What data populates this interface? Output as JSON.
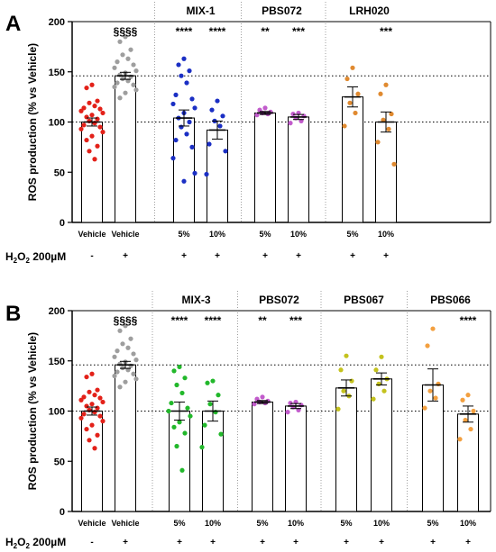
{
  "treatment_label": "H2O2 200µM",
  "treatment_label_parts": {
    "h": "H",
    "sub": "2",
    "o": "O",
    "sub2": "2",
    "rest": " 200µM"
  },
  "chart_data": [
    {
      "type": "bar",
      "panel": "A",
      "ylabel": "ROS production (% vs Vehicle)",
      "ylim": [
        0,
        200
      ],
      "yticks": [
        0,
        50,
        100,
        150,
        200
      ],
      "reference_lines": [
        100,
        146
      ],
      "categories": [
        "Vehicle",
        "Vehicle",
        "5%",
        "10%",
        "5%",
        "10%",
        "5%",
        "10%"
      ],
      "treatment": [
        "-",
        "+",
        "+",
        "+",
        "+",
        "+",
        "+",
        "+"
      ],
      "groups": [
        {
          "label": "",
          "from": 0,
          "to": 1
        },
        {
          "label": "MIX-1",
          "from": 2,
          "to": 3
        },
        {
          "label": "PBS072",
          "from": 4,
          "to": 5
        },
        {
          "label": "LRH020",
          "from": 6,
          "to": 7
        }
      ],
      "significance": [
        "",
        "§§§§",
        "****",
        "****",
        "**",
        "***",
        "",
        "***"
      ],
      "colors": [
        "#e32119",
        "#9e9e9e",
        "#1b2fc4",
        "#1b2fc4",
        "#c25ccc",
        "#c25ccc",
        "#e08a30",
        "#e08a30"
      ],
      "values": [
        100,
        146,
        104,
        92,
        109,
        105,
        125,
        100
      ],
      "errors": [
        4,
        3.5,
        8,
        9,
        1.5,
        2.5,
        10,
        10
      ],
      "points": [
        [
          137,
          134,
          121,
          119,
          116,
          114,
          113,
          111,
          109,
          107,
          105,
          103,
          101,
          99,
          97,
          95,
          93,
          90,
          86,
          82,
          76,
          71,
          63
        ],
        [
          185,
          180,
          172,
          167,
          163,
          160,
          157,
          154,
          151,
          149,
          147,
          145,
          143,
          141,
          139,
          137,
          135,
          132,
          129,
          124
        ],
        [
          163,
          157,
          151,
          146,
          139,
          127,
          123,
          118,
          114,
          109,
          104,
          100,
          95,
          88,
          82,
          75,
          64,
          49,
          41
        ],
        [
          121,
          112,
          106,
          101,
          96,
          78,
          71,
          48
        ],
        [
          114,
          112,
          110,
          109,
          108,
          107
        ],
        [
          109,
          108,
          106,
          104,
          101,
          99
        ],
        [
          154,
          143,
          128,
          119,
          109,
          96
        ],
        [
          137,
          128,
          108,
          102,
          93,
          80,
          58
        ]
      ]
    },
    {
      "type": "bar",
      "panel": "B",
      "ylabel": "ROS production (% vs Vehicle)",
      "ylim": [
        0,
        200
      ],
      "yticks": [
        0,
        50,
        100,
        150,
        200
      ],
      "reference_lines": [
        100,
        146
      ],
      "categories": [
        "Vehicle",
        "Vehicle",
        "5%",
        "10%",
        "5%",
        "10%",
        "5%",
        "10%",
        "5%",
        "10%"
      ],
      "treatment": [
        "-",
        "+",
        "+",
        "+",
        "+",
        "+",
        "+",
        "+",
        "+",
        "+"
      ],
      "groups": [
        {
          "label": "",
          "from": 0,
          "to": 1
        },
        {
          "label": "MIX-3",
          "from": 2,
          "to": 3
        },
        {
          "label": "PBS072",
          "from": 4,
          "to": 5
        },
        {
          "label": "PBS067",
          "from": 6,
          "to": 7
        },
        {
          "label": "PBS066",
          "from": 8,
          "to": 9
        }
      ],
      "significance": [
        "",
        "§§§§",
        "****",
        "****",
        "**",
        "***",
        "",
        "",
        "",
        "****"
      ],
      "colors": [
        "#e32119",
        "#9e9e9e",
        "#22b82b",
        "#22b82b",
        "#c25ccc",
        "#c25ccc",
        "#c4c21e",
        "#c4c21e",
        "#f3a040",
        "#f3a040"
      ],
      "values": [
        100,
        146,
        100,
        100,
        109,
        105,
        123,
        132,
        126,
        97
      ],
      "errors": [
        4,
        3.5,
        9,
        10,
        1.5,
        2.5,
        8,
        6,
        16,
        8
      ],
      "points": [
        [
          137,
          134,
          121,
          119,
          116,
          114,
          113,
          111,
          109,
          107,
          105,
          103,
          101,
          99,
          97,
          95,
          93,
          90,
          86,
          82,
          76,
          71,
          63
        ],
        [
          185,
          180,
          172,
          167,
          163,
          160,
          157,
          154,
          151,
          149,
          147,
          145,
          143,
          141,
          139,
          137,
          135,
          132,
          129,
          124
        ],
        [
          144,
          140,
          133,
          126,
          118,
          108,
          103,
          100,
          95,
          89,
          84,
          78,
          65,
          41
        ],
        [
          130,
          128,
          116,
          107,
          99,
          86,
          77,
          64
        ],
        [
          114,
          112,
          110,
          109,
          108,
          107
        ],
        [
          109,
          108,
          106,
          104,
          101,
          99
        ],
        [
          155,
          141,
          130,
          120,
          115,
          102
        ],
        [
          154,
          141,
          132,
          127,
          120,
          112
        ],
        [
          182,
          165,
          127,
          120,
          113,
          103
        ],
        [
          116,
          111,
          100,
          91,
          82,
          72
        ]
      ]
    }
  ]
}
